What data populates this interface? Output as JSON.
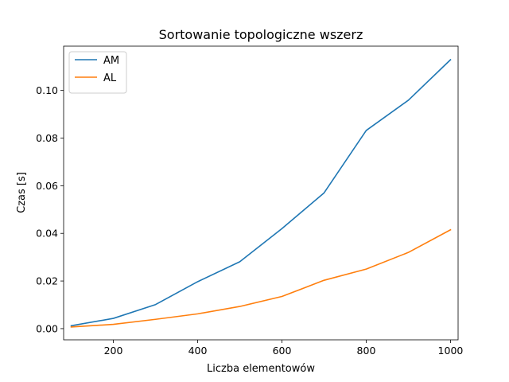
{
  "chart_data": {
    "type": "line",
    "title": "Sortowanie topologiczne wszerz",
    "xlabel": "Liczba elementowów",
    "ylabel": "Czas [s]",
    "xlim": [
      82,
      1018
    ],
    "ylim": [
      -0.0047,
      0.1186
    ],
    "x_ticks": [
      200,
      400,
      600,
      800,
      1000
    ],
    "x_tick_labels": [
      "200",
      "400",
      "600",
      "800",
      "1000"
    ],
    "y_ticks": [
      0.0,
      0.02,
      0.04,
      0.06,
      0.08,
      0.1
    ],
    "y_tick_labels": [
      "0.00",
      "0.02",
      "0.04",
      "0.06",
      "0.08",
      "0.10"
    ],
    "grid": false,
    "legend_position": "top-left",
    "x": [
      100,
      200,
      300,
      400,
      500,
      600,
      700,
      800,
      900,
      1000
    ],
    "series": [
      {
        "name": "AM",
        "color": "#1f77b4",
        "values": [
          0.0012,
          0.0043,
          0.0101,
          0.0197,
          0.0281,
          0.042,
          0.057,
          0.0832,
          0.0959,
          0.1129
        ]
      },
      {
        "name": "AL",
        "color": "#ff7f0e",
        "values": [
          0.0007,
          0.0018,
          0.0039,
          0.0062,
          0.0093,
          0.0135,
          0.0203,
          0.025,
          0.032,
          0.0415
        ]
      }
    ]
  }
}
